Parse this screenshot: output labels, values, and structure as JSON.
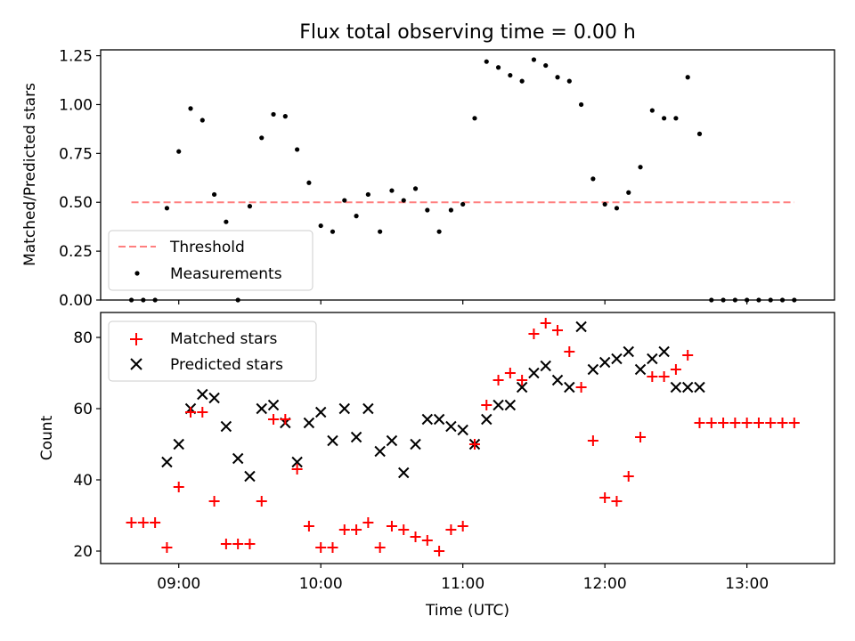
{
  "chart_data": [
    {
      "type": "scatter",
      "title": "Flux total observing time = 0.00 h",
      "ylabel": "Matched/Predicted stars",
      "xlabel": "",
      "x_time_range": [
        "08:27",
        "13:37"
      ],
      "ylim": [
        0,
        1.28
      ],
      "yticks": [
        {
          "v": 0.0,
          "label": "0.00"
        },
        {
          "v": 0.25,
          "label": "0.25"
        },
        {
          "v": 0.5,
          "label": "0.50"
        },
        {
          "v": 0.75,
          "label": "0.75"
        },
        {
          "v": 1.0,
          "label": "1.00"
        },
        {
          "v": 1.25,
          "label": "1.25"
        }
      ],
      "grid": false,
      "legend_position": "lower-left",
      "threshold": {
        "name": "Threshold",
        "value": 0.5,
        "x_start": "08:40",
        "x_end": "13:20",
        "color": "#ff7f7f"
      },
      "series": [
        {
          "name": "Measurements",
          "color": "#000000",
          "x": [
            "08:40",
            "08:45",
            "08:50",
            "08:55",
            "09:00",
            "09:05",
            "09:10",
            "09:15",
            "09:20",
            "09:25",
            "09:30",
            "09:35",
            "09:40",
            "09:45",
            "09:50",
            "09:55",
            "10:00",
            "10:05",
            "10:10",
            "10:15",
            "10:20",
            "10:25",
            "10:30",
            "10:35",
            "10:40",
            "10:45",
            "10:50",
            "10:55",
            "11:00",
            "11:05",
            "11:10",
            "11:15",
            "11:20",
            "11:25",
            "11:30",
            "11:35",
            "11:40",
            "11:45",
            "11:50",
            "11:55",
            "12:00",
            "12:05",
            "12:10",
            "12:15",
            "12:20",
            "12:25",
            "12:30",
            "12:35",
            "12:40",
            "12:45",
            "12:50",
            "12:55",
            "13:00",
            "13:05",
            "13:10",
            "13:15",
            "13:20"
          ],
          "y": [
            0.0,
            0.0,
            0.0,
            0.47,
            0.76,
            0.98,
            0.92,
            0.54,
            0.4,
            0.0,
            0.48,
            0.83,
            0.95,
            0.94,
            0.77,
            0.6,
            0.38,
            0.35,
            0.51,
            0.43,
            0.54,
            0.35,
            0.56,
            0.51,
            0.57,
            0.46,
            0.35,
            0.46,
            0.49,
            0.93,
            1.22,
            1.19,
            1.15,
            1.12,
            1.23,
            1.2,
            1.14,
            1.12,
            1.0,
            0.62,
            0.49,
            0.47,
            0.55,
            0.68,
            0.97,
            0.93,
            0.93,
            1.14,
            0.85,
            0.0,
            0.0,
            0.0,
            0.0,
            0.0,
            0.0,
            0.0,
            0.0
          ]
        }
      ]
    },
    {
      "type": "scatter",
      "title": "",
      "ylabel": "Count",
      "xlabel": "Time (UTC)",
      "x_time_range": [
        "08:27",
        "13:37"
      ],
      "ylim": [
        16.5,
        87
      ],
      "yticks": [
        {
          "v": 20,
          "label": "20"
        },
        {
          "v": 40,
          "label": "40"
        },
        {
          "v": 60,
          "label": "60"
        },
        {
          "v": 80,
          "label": "80"
        }
      ],
      "xticks": [
        "09:00",
        "10:00",
        "11:00",
        "12:00",
        "13:00"
      ],
      "grid": false,
      "legend_position": "upper-left",
      "series": [
        {
          "name": "Matched stars",
          "color": "#ff0000",
          "marker": "plus",
          "x": [
            "08:40",
            "08:45",
            "08:50",
            "08:55",
            "09:00",
            "09:05",
            "09:10",
            "09:15",
            "09:20",
            "09:25",
            "09:30",
            "09:35",
            "09:40",
            "09:45",
            "09:50",
            "09:55",
            "10:00",
            "10:05",
            "10:10",
            "10:15",
            "10:20",
            "10:25",
            "10:30",
            "10:35",
            "10:40",
            "10:45",
            "10:50",
            "10:55",
            "11:00",
            "11:05",
            "11:10",
            "11:15",
            "11:20",
            "11:25",
            "11:30",
            "11:35",
            "11:40",
            "11:45",
            "11:50",
            "11:55",
            "12:00",
            "12:05",
            "12:10",
            "12:15",
            "12:20",
            "12:25",
            "12:30",
            "12:35",
            "12:40",
            "12:45",
            "12:50",
            "12:55",
            "13:00",
            "13:05",
            "13:10",
            "13:15",
            "13:20"
          ],
          "y": [
            28,
            28,
            28,
            21,
            38,
            59,
            59,
            34,
            22,
            22,
            22,
            34,
            57,
            57,
            43,
            27,
            21,
            21,
            26,
            26,
            28,
            21,
            27,
            26,
            24,
            23,
            20,
            26,
            27,
            50,
            61,
            68,
            70,
            68,
            81,
            84,
            82,
            76,
            66,
            51,
            35,
            34,
            41,
            52,
            69,
            69,
            71,
            75,
            56,
            56,
            56,
            56,
            56,
            56,
            56,
            56,
            56
          ]
        },
        {
          "name": "Predicted stars",
          "color": "#000000",
          "marker": "x",
          "x": [
            "08:55",
            "09:00",
            "09:05",
            "09:10",
            "09:15",
            "09:20",
            "09:25",
            "09:30",
            "09:35",
            "09:40",
            "09:45",
            "09:50",
            "09:55",
            "10:00",
            "10:05",
            "10:10",
            "10:15",
            "10:20",
            "10:25",
            "10:30",
            "10:35",
            "10:40",
            "10:45",
            "10:50",
            "10:55",
            "11:00",
            "11:05",
            "11:10",
            "11:15",
            "11:20",
            "11:25",
            "11:30",
            "11:35",
            "11:40",
            "11:45",
            "11:50",
            "11:55",
            "12:00",
            "12:05",
            "12:10",
            "12:15",
            "12:20",
            "12:25",
            "12:30",
            "12:35",
            "12:40"
          ],
          "y": [
            45,
            50,
            60,
            64,
            63,
            55,
            46,
            41,
            60,
            61,
            56,
            45,
            56,
            59,
            51,
            60,
            52,
            60,
            48,
            51,
            42,
            50,
            57,
            57,
            55,
            54,
            50,
            57,
            61,
            61,
            66,
            70,
            72,
            68,
            66,
            83,
            71,
            73,
            74,
            76,
            71,
            74,
            76,
            66,
            66,
            66
          ]
        }
      ]
    }
  ]
}
